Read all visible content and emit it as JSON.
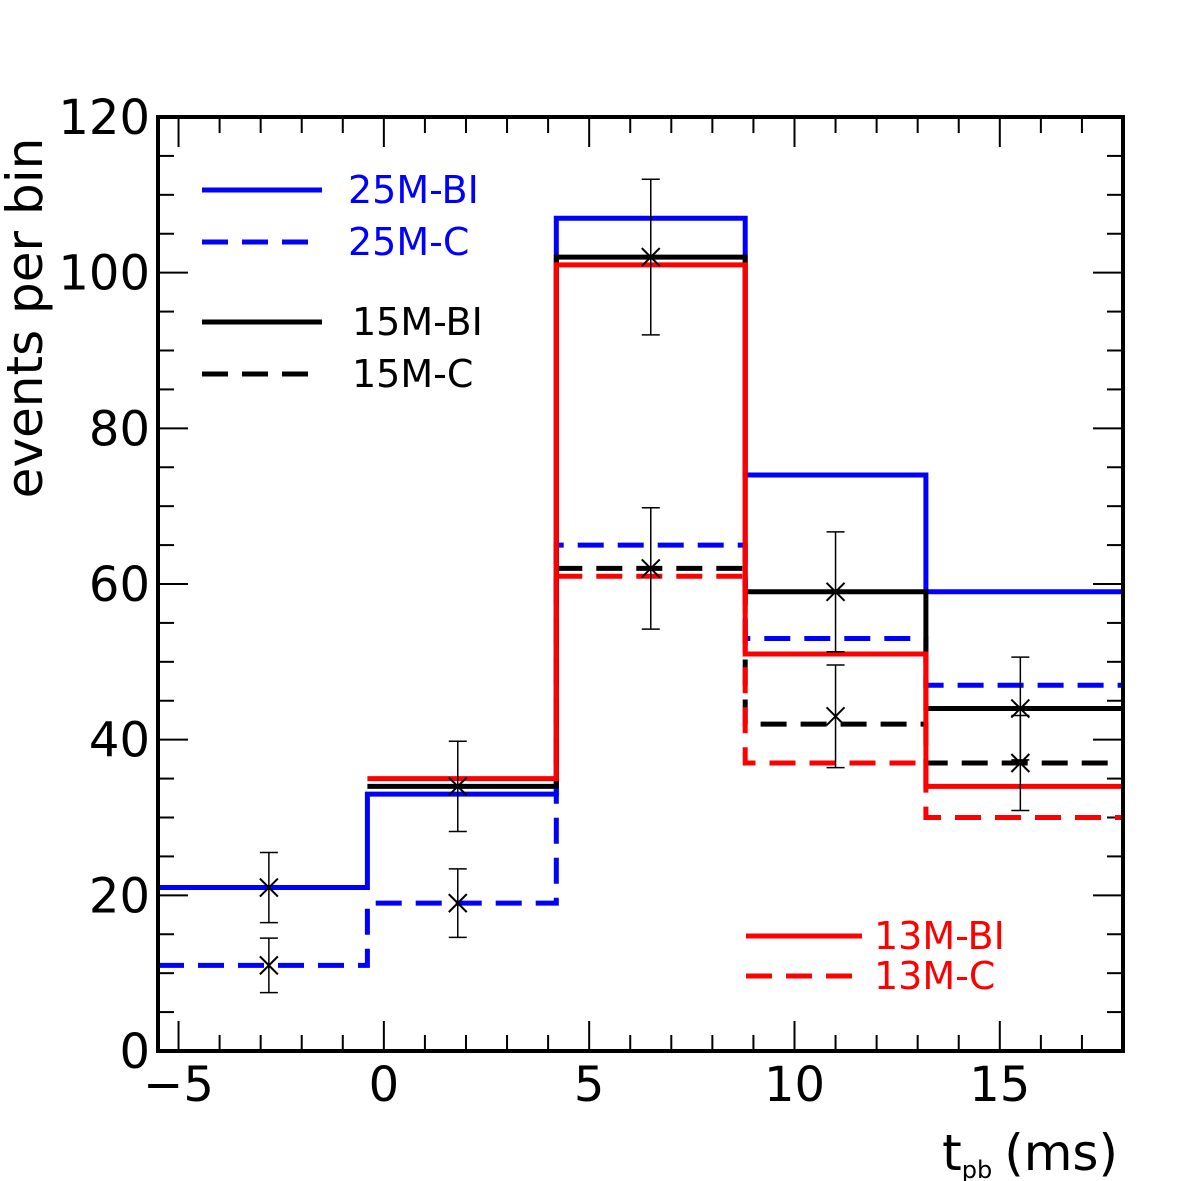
{
  "chart_data": {
    "type": "line",
    "step": true,
    "xlabel": "t",
    "xlabel_sub": "pb",
    "xlabel_unit": "(ms)",
    "ylabel": "events per bin",
    "xlim": [
      -5.5,
      18
    ],
    "ylim": [
      0,
      120
    ],
    "xticks": [
      -5,
      0,
      5,
      10,
      15
    ],
    "xtick_labels": [
      "−5",
      "0",
      "5",
      "10",
      "15"
    ],
    "yticks": [
      0,
      20,
      40,
      60,
      80,
      100,
      120
    ],
    "ytick_labels": [
      "0",
      "20",
      "40",
      "60",
      "80",
      "100",
      "120"
    ],
    "grid": false,
    "bin_edges": [
      -5.5,
      -0.4,
      4.2,
      8.8,
      13.2,
      18
    ],
    "series": [
      {
        "name": "25M-BI",
        "color": "#0000ff",
        "dash": "solid",
        "values": [
          21,
          33,
          107,
          74,
          59
        ]
      },
      {
        "name": "25M-C",
        "color": "#0000ff",
        "dash": "dashed",
        "values": [
          11,
          19,
          65,
          53,
          47
        ]
      },
      {
        "name": "15M-BI",
        "color": "#000000",
        "dash": "solid",
        "values": [
          null,
          34,
          102,
          59,
          44
        ]
      },
      {
        "name": "15M-C",
        "color": "#000000",
        "dash": "dashed",
        "values": [
          null,
          null,
          62,
          42,
          37
        ]
      },
      {
        "name": "13M-BI",
        "color": "#ff0000",
        "dash": "solid",
        "values": [
          null,
          35,
          101,
          51,
          34
        ]
      },
      {
        "name": "13M-C",
        "color": "#ff0000",
        "dash": "dashed",
        "values": [
          null,
          null,
          61,
          37,
          30
        ]
      }
    ],
    "points": [
      {
        "x": -2.8,
        "y": 21,
        "low": 16.5,
        "high": 25.5
      },
      {
        "x": -2.8,
        "y": 11,
        "low": 7.5,
        "high": 14.5
      },
      {
        "x": 1.8,
        "y": 34,
        "low": 28.2,
        "high": 39.8
      },
      {
        "x": 1.8,
        "y": 19,
        "low": 14.6,
        "high": 23.4
      },
      {
        "x": 6.5,
        "y": 102,
        "low": 92,
        "high": 112
      },
      {
        "x": 6.5,
        "y": 62,
        "low": 54.2,
        "high": 69.8
      },
      {
        "x": 11,
        "y": 59,
        "low": 51.3,
        "high": 66.7
      },
      {
        "x": 11,
        "y": 43,
        "low": 36.4,
        "high": 49.6
      },
      {
        "x": 15.5,
        "y": 44,
        "low": 37.4,
        "high": 50.6
      },
      {
        "x": 15.5,
        "y": 37,
        "low": 30.9,
        "high": 43.1
      }
    ]
  }
}
